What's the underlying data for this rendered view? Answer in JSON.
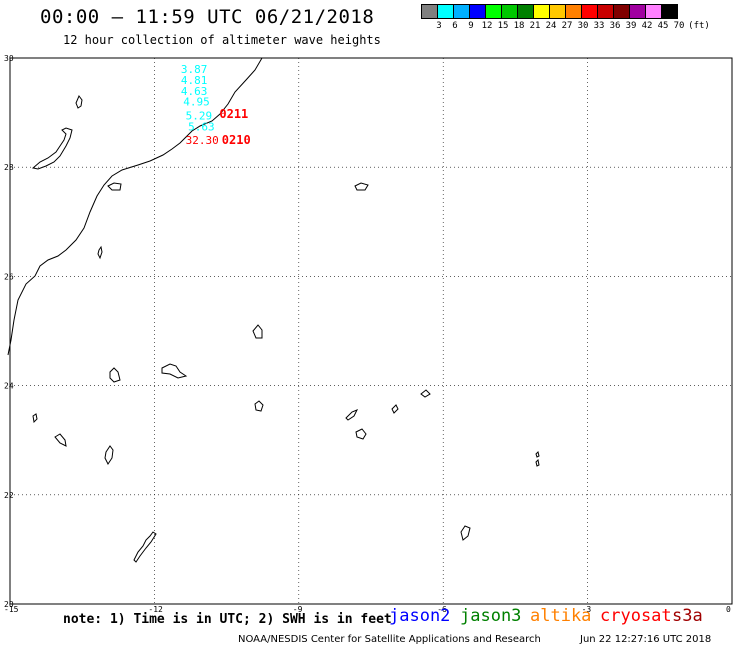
{
  "header": {
    "title": "00:00 — 11:59 UTC 06/21/2018",
    "subtitle": "12 hour collection of altimeter wave heights"
  },
  "color_scale": {
    "labels": [
      "3",
      "6",
      "9",
      "12",
      "15",
      "18",
      "21",
      "24",
      "27",
      "30",
      "33",
      "36",
      "39",
      "42",
      "45",
      "70"
    ],
    "unit": "(ft)",
    "colors": [
      "#808080",
      "#00ffff",
      "#00b0ff",
      "#0000ff",
      "#00ff00",
      "#00c800",
      "#008000",
      "#ffff00",
      "#ffc800",
      "#ff8000",
      "#ff0000",
      "#c80000",
      "#800000",
      "#a000a0",
      "#ff80ff",
      "#000000"
    ]
  },
  "axes": {
    "lat_ticks": [
      "30",
      "28",
      "26",
      "24",
      "22",
      "20"
    ],
    "lon_ticks": [
      "-15",
      "-12",
      "-9",
      "-6",
      "-3",
      "0"
    ]
  },
  "observations": [
    {
      "value": "3.87",
      "color": "#00ffff",
      "lon": -11.45,
      "lat": 29.8
    },
    {
      "value": "4.81",
      "color": "#00ffff",
      "lon": -11.45,
      "lat": 29.6
    },
    {
      "value": "4.63",
      "color": "#00ffff",
      "lon": -11.45,
      "lat": 29.4
    },
    {
      "value": "4.95",
      "color": "#00ffff",
      "lon": -11.4,
      "lat": 29.2
    },
    {
      "value": "5.29",
      "color": "#00ffff",
      "lon": -11.35,
      "lat": 28.95
    },
    {
      "value": "5.63",
      "color": "#00ffff",
      "lon": -11.3,
      "lat": 28.75
    },
    {
      "value": "32.30",
      "color": "#ff0000",
      "lon": -11.35,
      "lat": 28.5
    }
  ],
  "time_labels": [
    {
      "value": "0211",
      "color": "#ff0000",
      "lon": -10.65,
      "lat": 28.97
    },
    {
      "value": "0210",
      "color": "#ff0000",
      "lon": -10.6,
      "lat": 28.5
    }
  ],
  "footer": {
    "note": "note: 1) Time is in UTC; 2) SWH is in feet",
    "satellites": [
      {
        "name": "jason2",
        "color": "#0000ff"
      },
      {
        "name": "jason3",
        "color": "#008000"
      },
      {
        "name": "altika",
        "color": "#ff8000"
      },
      {
        "name": "cryosat",
        "color": "#ff0000"
      },
      {
        "name": "s3a",
        "color": "#a00000"
      }
    ],
    "credit": "NOAA/NESDIS Center for Satellite Applications and Research",
    "timestamp": "Jun 22 12:27:16 UTC 2018"
  }
}
